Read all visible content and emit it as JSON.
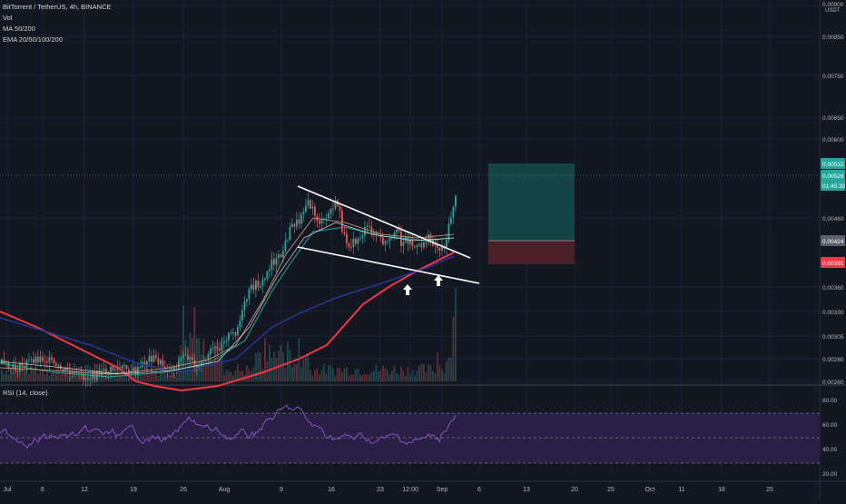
{
  "legend": {
    "symbol": "BitTorrent / TetherUS, 4h, BINANCE",
    "vol": "Vol",
    "ma": "MA 50/200",
    "ema": "EMA 20/50/100/200"
  },
  "rsi": {
    "label": "RSI (14, close)"
  },
  "price_axis": {
    "currency": "USDT",
    "tick_labels": [
      "0.00900",
      "0.00850",
      "0.00750",
      "0.00650",
      "0.00600",
      "0.00460",
      "0.00390",
      "0.00360",
      "0.00330",
      "0.00305",
      "0.00280",
      "0.00260"
    ]
  },
  "price_tags": {
    "take_profit": "0.00532",
    "current": "0.00528",
    "countdown": "01:45:30",
    "entry": "0.00424",
    "stop": "0.00391"
  },
  "rsi_axis": {
    "tick_labels": [
      "80.00",
      "60.00",
      "40.00",
      "20.00"
    ]
  },
  "time_axis": {
    "labels": [
      "Jul",
      "6",
      "12",
      "19",
      "26",
      "Aug",
      "9",
      "16",
      "23",
      "12:00",
      "Sep",
      "6",
      "13",
      "20",
      "25",
      "Oct",
      "11",
      "18",
      "25"
    ]
  },
  "colors": {
    "background": "#131722",
    "up": "#26a69a",
    "down": "#ef5350",
    "profit_zone": "#154444",
    "loss_zone": "#4a1f26",
    "rsi_line": "#7e57c2",
    "rsi_band": "#2a1f44",
    "ma200": "#f23645",
    "ema_blue": "#283593"
  },
  "annotations": {
    "markers": [
      "arrow-up-icon",
      "arrow-up-icon"
    ]
  }
}
